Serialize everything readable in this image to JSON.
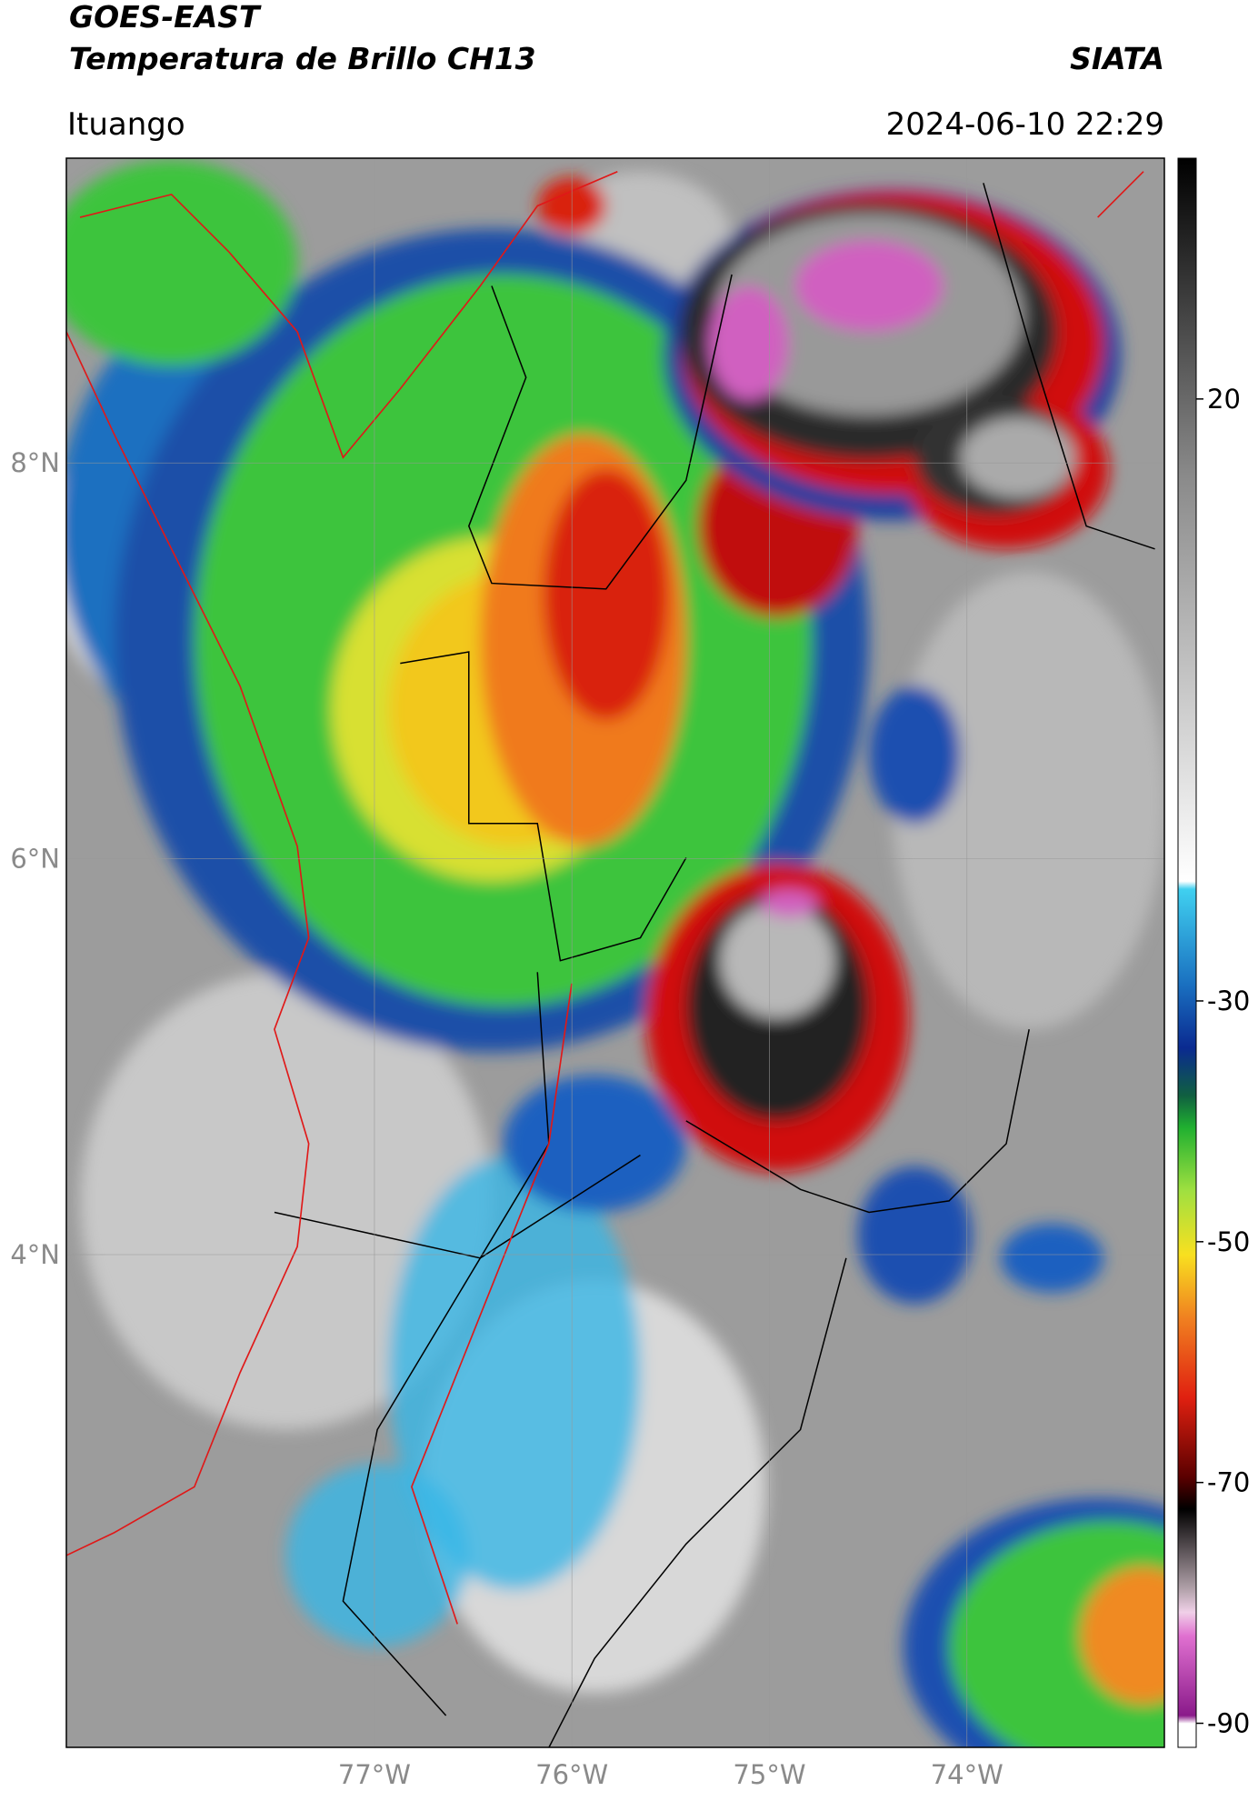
{
  "header": {
    "satellite": "GOES-EAST",
    "product": "Temperatura de Brillo CH13",
    "agency": "SIATA",
    "location": "Ituango",
    "timestamp": "2024-06-10 22:29"
  },
  "map": {
    "lon_range": [
      -78.56,
      -73.0
    ],
    "lat_range": [
      1.51,
      9.54
    ],
    "lat_ticks": [
      {
        "value": 8,
        "label": "8°N"
      },
      {
        "value": 6,
        "label": "6°N"
      },
      {
        "value": 4,
        "label": "4°N"
      }
    ],
    "lon_ticks": [
      {
        "value": -77,
        "label": "77°W"
      },
      {
        "value": -76,
        "label": "76°W"
      },
      {
        "value": -75,
        "label": "75°W"
      },
      {
        "value": -74,
        "label": "74°W"
      }
    ]
  },
  "colorbar": {
    "range": [
      -92,
      40
    ],
    "ticks": [
      20,
      -30,
      -50,
      -70,
      -90
    ]
  }
}
